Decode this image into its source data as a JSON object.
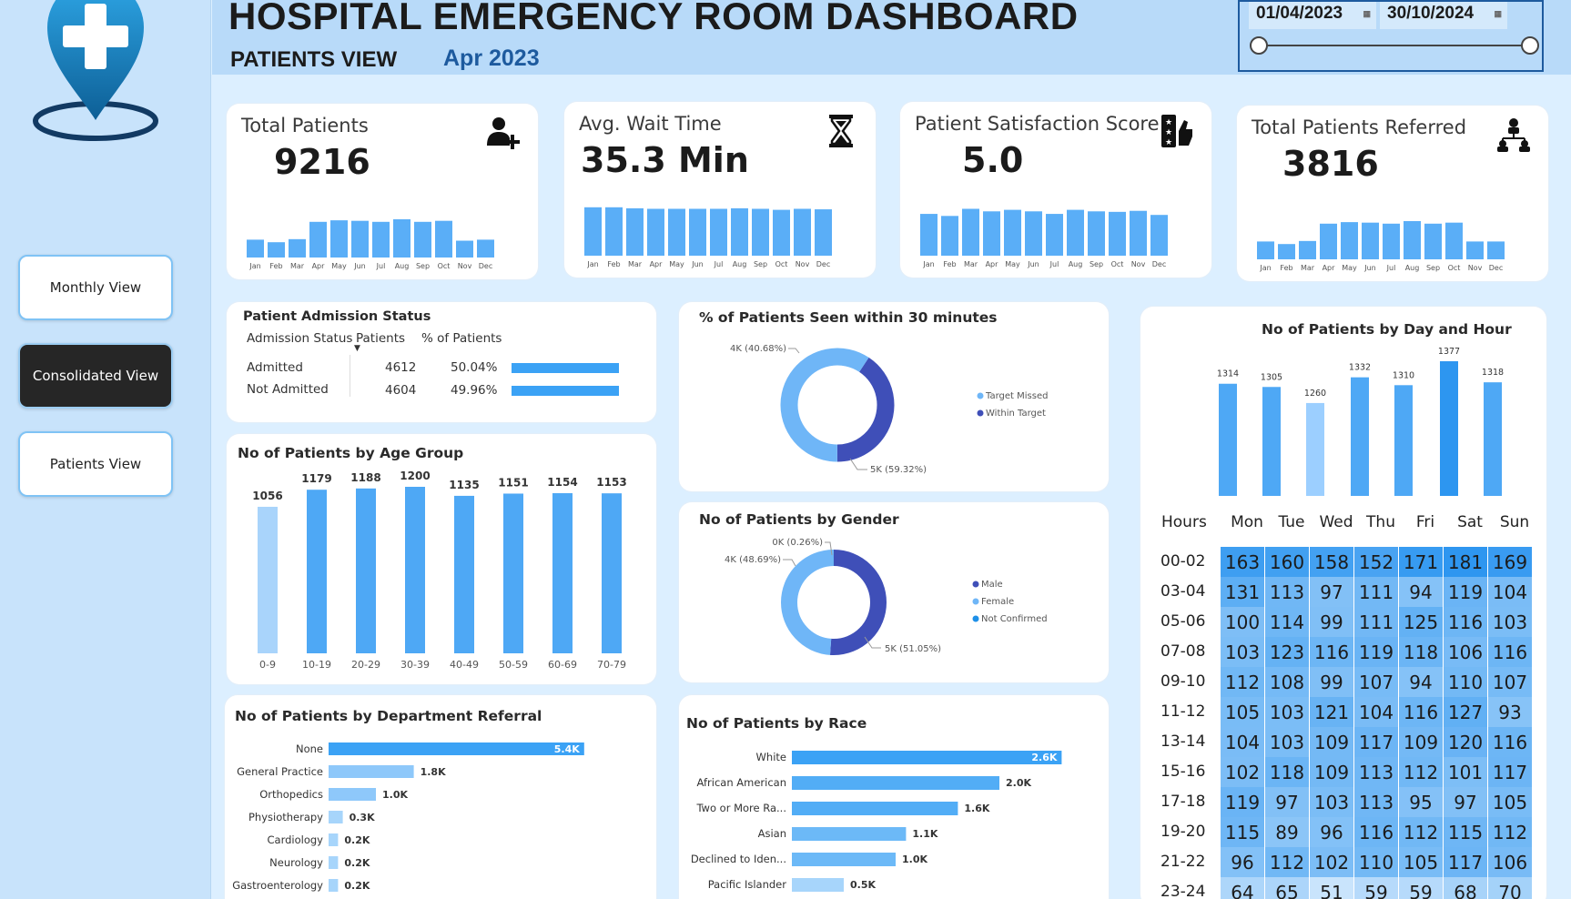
{
  "header": {
    "title": "HOSPITAL EMERGENCY ROOM DASHBOARD",
    "subtitle": "PATIENTS VIEW",
    "period": "Apr 2023",
    "date_from": "01/04/2023",
    "date_to": "30/10/2024"
  },
  "nav": {
    "monthly": "Monthly View",
    "consolidated": "Consolidated View",
    "patients": "Patients View",
    "active": "consolidated"
  },
  "months": [
    "Jan",
    "Feb",
    "Mar",
    "Apr",
    "May",
    "Jun",
    "Jul",
    "Aug",
    "Sep",
    "Oct",
    "Nov",
    "Dec"
  ],
  "kpis": [
    {
      "title": "Total Patients",
      "value": "9216",
      "icon": "add-user-icon",
      "trend": [
        0.35,
        0.3,
        0.36,
        0.7,
        0.73,
        0.72,
        0.7,
        0.75,
        0.7,
        0.72,
        0.33,
        0.35
      ]
    },
    {
      "title": "Avg. Wait Time",
      "value": "35.3 Min",
      "icon": "hourglass-icon",
      "trend": [
        0.95,
        0.95,
        0.93,
        0.92,
        0.92,
        0.92,
        0.92,
        0.93,
        0.92,
        0.9,
        0.92,
        0.91
      ]
    },
    {
      "title": "Patient Satisfaction Score",
      "value": "5.0",
      "icon": "rating-icon",
      "trend": [
        0.82,
        0.78,
        0.92,
        0.87,
        0.9,
        0.87,
        0.82,
        0.9,
        0.87,
        0.86,
        0.88,
        0.8
      ]
    },
    {
      "title": "Total Patients Referred",
      "value": "3816",
      "icon": "referral-icon",
      "trend": [
        0.35,
        0.3,
        0.36,
        0.7,
        0.73,
        0.72,
        0.7,
        0.75,
        0.7,
        0.72,
        0.35,
        0.35
      ]
    }
  ],
  "admission": {
    "title": "Patient Admission Status",
    "col_status": "Admission Status",
    "col_patients": "Patients",
    "col_pct": "% of Patients",
    "rows": [
      {
        "status": "Admitted",
        "patients": "4612",
        "pct": "50.04%",
        "frac": 0.5004
      },
      {
        "status": "Not Admitted",
        "patients": "4604",
        "pct": "49.96%",
        "frac": 0.4996
      }
    ]
  },
  "seen30": {
    "title": "% of Patients Seen within 30 minutes",
    "legend": [
      "Target Missed",
      "Within Target"
    ],
    "labels": [
      "4K (40.68%)",
      "5K (59.32%)"
    ],
    "values": [
      40.68,
      59.32
    ],
    "colors": [
      "#3f4fb8",
      "#6fb6f7"
    ]
  },
  "gender": {
    "title": "No of Patients by Gender",
    "legend": [
      "Male",
      "Female",
      "Not Confirmed"
    ],
    "labels": [
      "0K (0.26%)",
      "4K (48.69%)",
      "5K (51.05%)"
    ],
    "values": [
      51.05,
      48.69,
      0.26
    ],
    "colors": [
      "#3f4fb8",
      "#6fb6f7",
      "#1e90e8"
    ]
  },
  "chart_data": [
    {
      "type": "bar",
      "title": "No of Patients by Age Group",
      "categories": [
        "0-9",
        "10-19",
        "20-29",
        "30-39",
        "40-49",
        "50-59",
        "60-69",
        "70-79"
      ],
      "values": [
        1056,
        1179,
        1188,
        1200,
        1135,
        1151,
        1154,
        1153
      ],
      "ylim": [
        0,
        1200
      ]
    },
    {
      "type": "bar",
      "title": "No of Patients by Department Referral",
      "categories": [
        "None",
        "General Practice",
        "Orthopedics",
        "Physiotherapy",
        "Cardiology",
        "Neurology",
        "Gastroenterology"
      ],
      "values": [
        5.4,
        1.8,
        1.0,
        0.3,
        0.2,
        0.2,
        0.2
      ],
      "labels": [
        "5.4K",
        "1.8K",
        "1.0K",
        "0.3K",
        "0.2K",
        "0.2K",
        "0.2K"
      ]
    },
    {
      "type": "bar",
      "title": "No of Patients by Race",
      "categories": [
        "White",
        "African American",
        "Two or More Ra...",
        "Asian",
        "Declined to Iden...",
        "Pacific Islander"
      ],
      "values": [
        2.6,
        2.0,
        1.6,
        1.1,
        1.0,
        0.5
      ],
      "labels": [
        "2.6K",
        "2.0K",
        "1.6K",
        "1.1K",
        "1.0K",
        "0.5K"
      ]
    },
    {
      "type": "bar",
      "title": "No of Patients by Day and Hour",
      "categories": [
        "Mon",
        "Tue",
        "Wed",
        "Thu",
        "Fri",
        "Sat",
        "Sun"
      ],
      "values": [
        1314,
        1305,
        1260,
        1332,
        1310,
        1377,
        1318
      ]
    },
    {
      "type": "heatmap",
      "row_header": "Hours",
      "rows": [
        "00-02",
        "03-04",
        "05-06",
        "07-08",
        "09-10",
        "11-12",
        "13-14",
        "15-16",
        "17-18",
        "19-20",
        "21-22",
        "23-24"
      ],
      "columns": [
        "Mon",
        "Tue",
        "Wed",
        "Thu",
        "Fri",
        "Sat",
        "Sun"
      ],
      "values": [
        [
          163,
          160,
          158,
          152,
          171,
          181,
          169
        ],
        [
          131,
          113,
          97,
          111,
          94,
          119,
          104
        ],
        [
          100,
          114,
          99,
          111,
          125,
          116,
          103
        ],
        [
          103,
          123,
          116,
          119,
          118,
          106,
          116
        ],
        [
          112,
          108,
          99,
          107,
          94,
          110,
          107
        ],
        [
          105,
          103,
          121,
          104,
          116,
          127,
          93
        ],
        [
          104,
          103,
          109,
          117,
          109,
          120,
          116
        ],
        [
          102,
          118,
          109,
          113,
          112,
          101,
          117
        ],
        [
          119,
          97,
          103,
          113,
          95,
          97,
          105
        ],
        [
          115,
          89,
          96,
          116,
          112,
          115,
          112
        ],
        [
          96,
          112,
          102,
          110,
          105,
          117,
          106
        ],
        [
          64,
          65,
          51,
          59,
          59,
          68,
          70
        ]
      ]
    }
  ],
  "colors": {
    "bar": "#4ea8f5",
    "bar_light": "#9ccfff",
    "bar_strong": "#2d96f0",
    "donut_dark": "#3f4fb8"
  }
}
